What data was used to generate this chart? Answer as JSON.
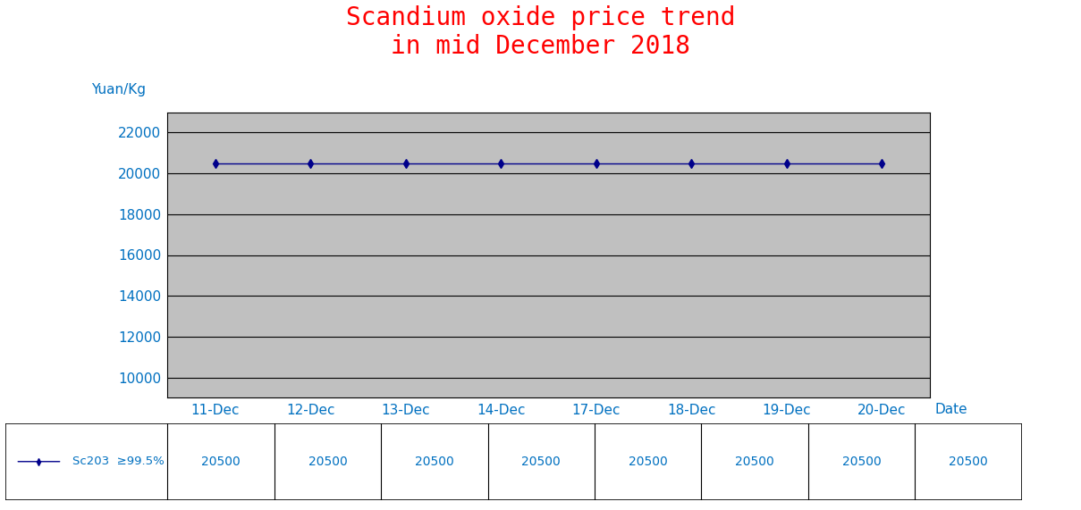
{
  "title_line1": "Scandium oxide price trend",
  "title_line2": "in mid December 2018",
  "title_color": "#FF0000",
  "ylabel": "Yuan/Kg",
  "xlabel": "Date",
  "ylabel_color": "#0070C0",
  "xlabel_color": "#0070C0",
  "tick_color": "#0070C0",
  "categories": [
    "11-Dec",
    "12-Dec",
    "13-Dec",
    "14-Dec",
    "17-Dec",
    "18-Dec",
    "19-Dec",
    "20-Dec"
  ],
  "values": [
    20500,
    20500,
    20500,
    20500,
    20500,
    20500,
    20500,
    20500
  ],
  "ylim": [
    9000,
    23000
  ],
  "yticks": [
    10000,
    12000,
    14000,
    16000,
    18000,
    20000,
    22000
  ],
  "line_color": "#00008B",
  "marker": "d",
  "marker_color": "#00008B",
  "marker_size": 5,
  "plot_bg_color": "#C0C0C0",
  "legend_label": "Sc203  ≥99.5%",
  "table_values": [
    "20500",
    "20500",
    "20500",
    "20500",
    "20500",
    "20500",
    "20500",
    "20500"
  ],
  "grid_color": "#000000",
  "title_fontsize": 20,
  "axis_label_fontsize": 11,
  "tick_fontsize": 11
}
